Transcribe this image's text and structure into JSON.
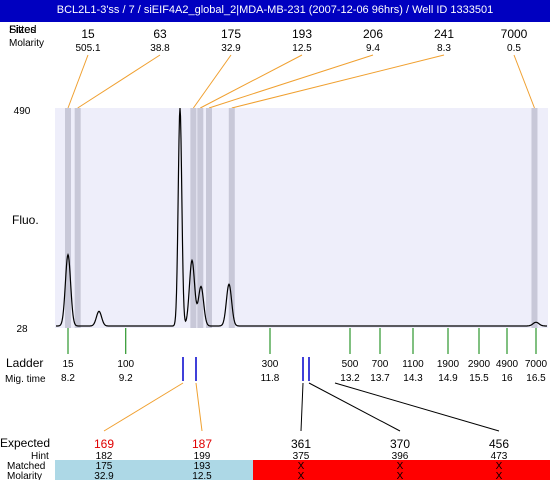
{
  "window": {
    "title": "BCL2L1-3'ss / 7 / siEIF4A2_global_2|MDA-MB-231 (2007-12-06 96hrs) / Well ID 1333501"
  },
  "header": {
    "row1_label": "Fitted",
    "row1_label_overlap": "Sizes",
    "row2_label": "Molarity"
  },
  "colors": {
    "plot_bg": "#eeeefa",
    "band": "#c8c8d8",
    "trace": "#000000",
    "orange_leader": "#f0a030",
    "ladder_tick": "#008000",
    "marker_blue": "#0000cc",
    "expected_red": "#e00000",
    "matched_ok": "#add8e6",
    "matched_fail": "#ff0000",
    "title_bar": "#0000c0"
  },
  "chart_data": {
    "type": "line",
    "title": "",
    "ylabel": "Fluo.",
    "ylim": [
      28,
      490
    ],
    "ytick_labels": [
      "490",
      "28"
    ],
    "fitted_peaks": [
      {
        "size": "15",
        "molarity": "505.1",
        "ladder_x": 15
      },
      {
        "size": "63",
        "molarity": "38.8",
        "ladder_x": 30
      },
      {
        "size": "175",
        "molarity": "32.9",
        "ladder_x": 195
      },
      {
        "size": "193",
        "molarity": "12.5",
        "ladder_x": 205
      },
      {
        "size": "206",
        "molarity": "9.4",
        "ladder_x": 216
      },
      {
        "size": "241",
        "molarity": "8.3",
        "ladder_x": 245
      },
      {
        "size": "7000",
        "molarity": "0.5",
        "ladder_x": 6890
      }
    ],
    "ladder": {
      "label": "Ladder",
      "mig_label": "Mig. time",
      "sizes": [
        "15",
        "100",
        "300",
        "500",
        "700",
        "1100",
        "1900",
        "2900",
        "4900",
        "7000"
      ],
      "mig_times": [
        "8.2",
        "9.2",
        "11.8",
        "13.2",
        "13.7",
        "14.3",
        "14.9",
        "15.5",
        "16",
        "16.5"
      ]
    },
    "trace": [
      {
        "size": 15,
        "height": 182
      },
      {
        "size": 63,
        "height": 63
      },
      {
        "size": 175,
        "height": 490
      },
      {
        "size": 193,
        "height": 170
      },
      {
        "size": 206,
        "height": 115
      },
      {
        "size": 241,
        "height": 120
      },
      {
        "size": 7000,
        "height": 40
      }
    ],
    "expected": {
      "label": "Expected",
      "hint_label": "Hint",
      "matched_label": "Matched",
      "molarity_label": "Molarity",
      "items": [
        {
          "expected": "169",
          "hint": "182",
          "matched": "175",
          "molarity": "32.9",
          "status": "ok",
          "ladder_x": 175
        },
        {
          "expected": "187",
          "hint": "199",
          "matched": "193",
          "molarity": "12.5",
          "status": "ok",
          "ladder_x": 193
        },
        {
          "expected": "361",
          "hint": "375",
          "matched": "X",
          "molarity": "X",
          "status": "fail",
          "ladder_x": 361
        },
        {
          "expected": "370",
          "hint": "396",
          "matched": "X",
          "molarity": "X",
          "status": "fail",
          "ladder_x": 370
        },
        {
          "expected": "456",
          "hint": "473",
          "matched": "X",
          "molarity": "X",
          "status": "fail",
          "ladder_x": 456
        }
      ]
    }
  }
}
